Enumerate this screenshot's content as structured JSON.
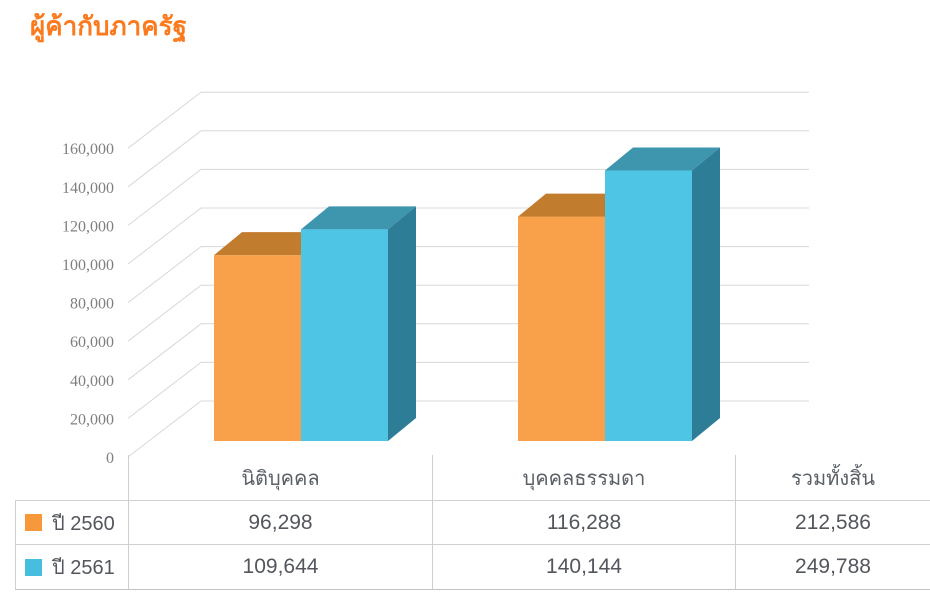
{
  "chart_data": {
    "type": "bar",
    "style": "3d-column",
    "title": "ผู้ค้ากับภาครัฐ",
    "categories": [
      "นิติบุคคล",
      "บุคคลธรรมดา"
    ],
    "series": [
      {
        "name": "ปี 2560",
        "color": "#F7993B",
        "values": [
          96298,
          116288
        ],
        "total": 212586
      },
      {
        "name": "ปี 2561",
        "color": "#45BFDD",
        "values": [
          109644,
          140144
        ],
        "total": 249788
      }
    ],
    "xlabel": "",
    "ylabel": "",
    "ylim": [
      0,
      160000
    ],
    "ytick_step": 20000,
    "ytick_labels": [
      "0",
      "20,000",
      "40,000",
      "60,000",
      "80,000",
      "100,000",
      "120,000",
      "140,000",
      "160,000"
    ],
    "grid": true,
    "legend_position": "table-rows-left"
  },
  "table": {
    "col_headers": [
      "นิติบุคคล",
      "บุคคลธรรมดา",
      "รวมทั้งสิ้น"
    ],
    "rows": [
      {
        "legend": "ปี 2560",
        "cells": [
          "96,298",
          "116,288",
          "212,586"
        ]
      },
      {
        "legend": "ปี 2561",
        "cells": [
          "109,644",
          "140,144",
          "249,788"
        ]
      }
    ]
  },
  "colors": {
    "title": "#FB7A1E",
    "orange_front": "#F8A04A",
    "orange_top": "#C27C2E",
    "blue_front": "#4FC5E5",
    "blue_top": "#3D95AE",
    "blue_side": "#2E7D96",
    "grid": "#D8D8D8",
    "axis_text": "#7F7F7F",
    "table_text": "#53575D",
    "header_text": "#5A6066",
    "border": "#CFCFCF"
  }
}
